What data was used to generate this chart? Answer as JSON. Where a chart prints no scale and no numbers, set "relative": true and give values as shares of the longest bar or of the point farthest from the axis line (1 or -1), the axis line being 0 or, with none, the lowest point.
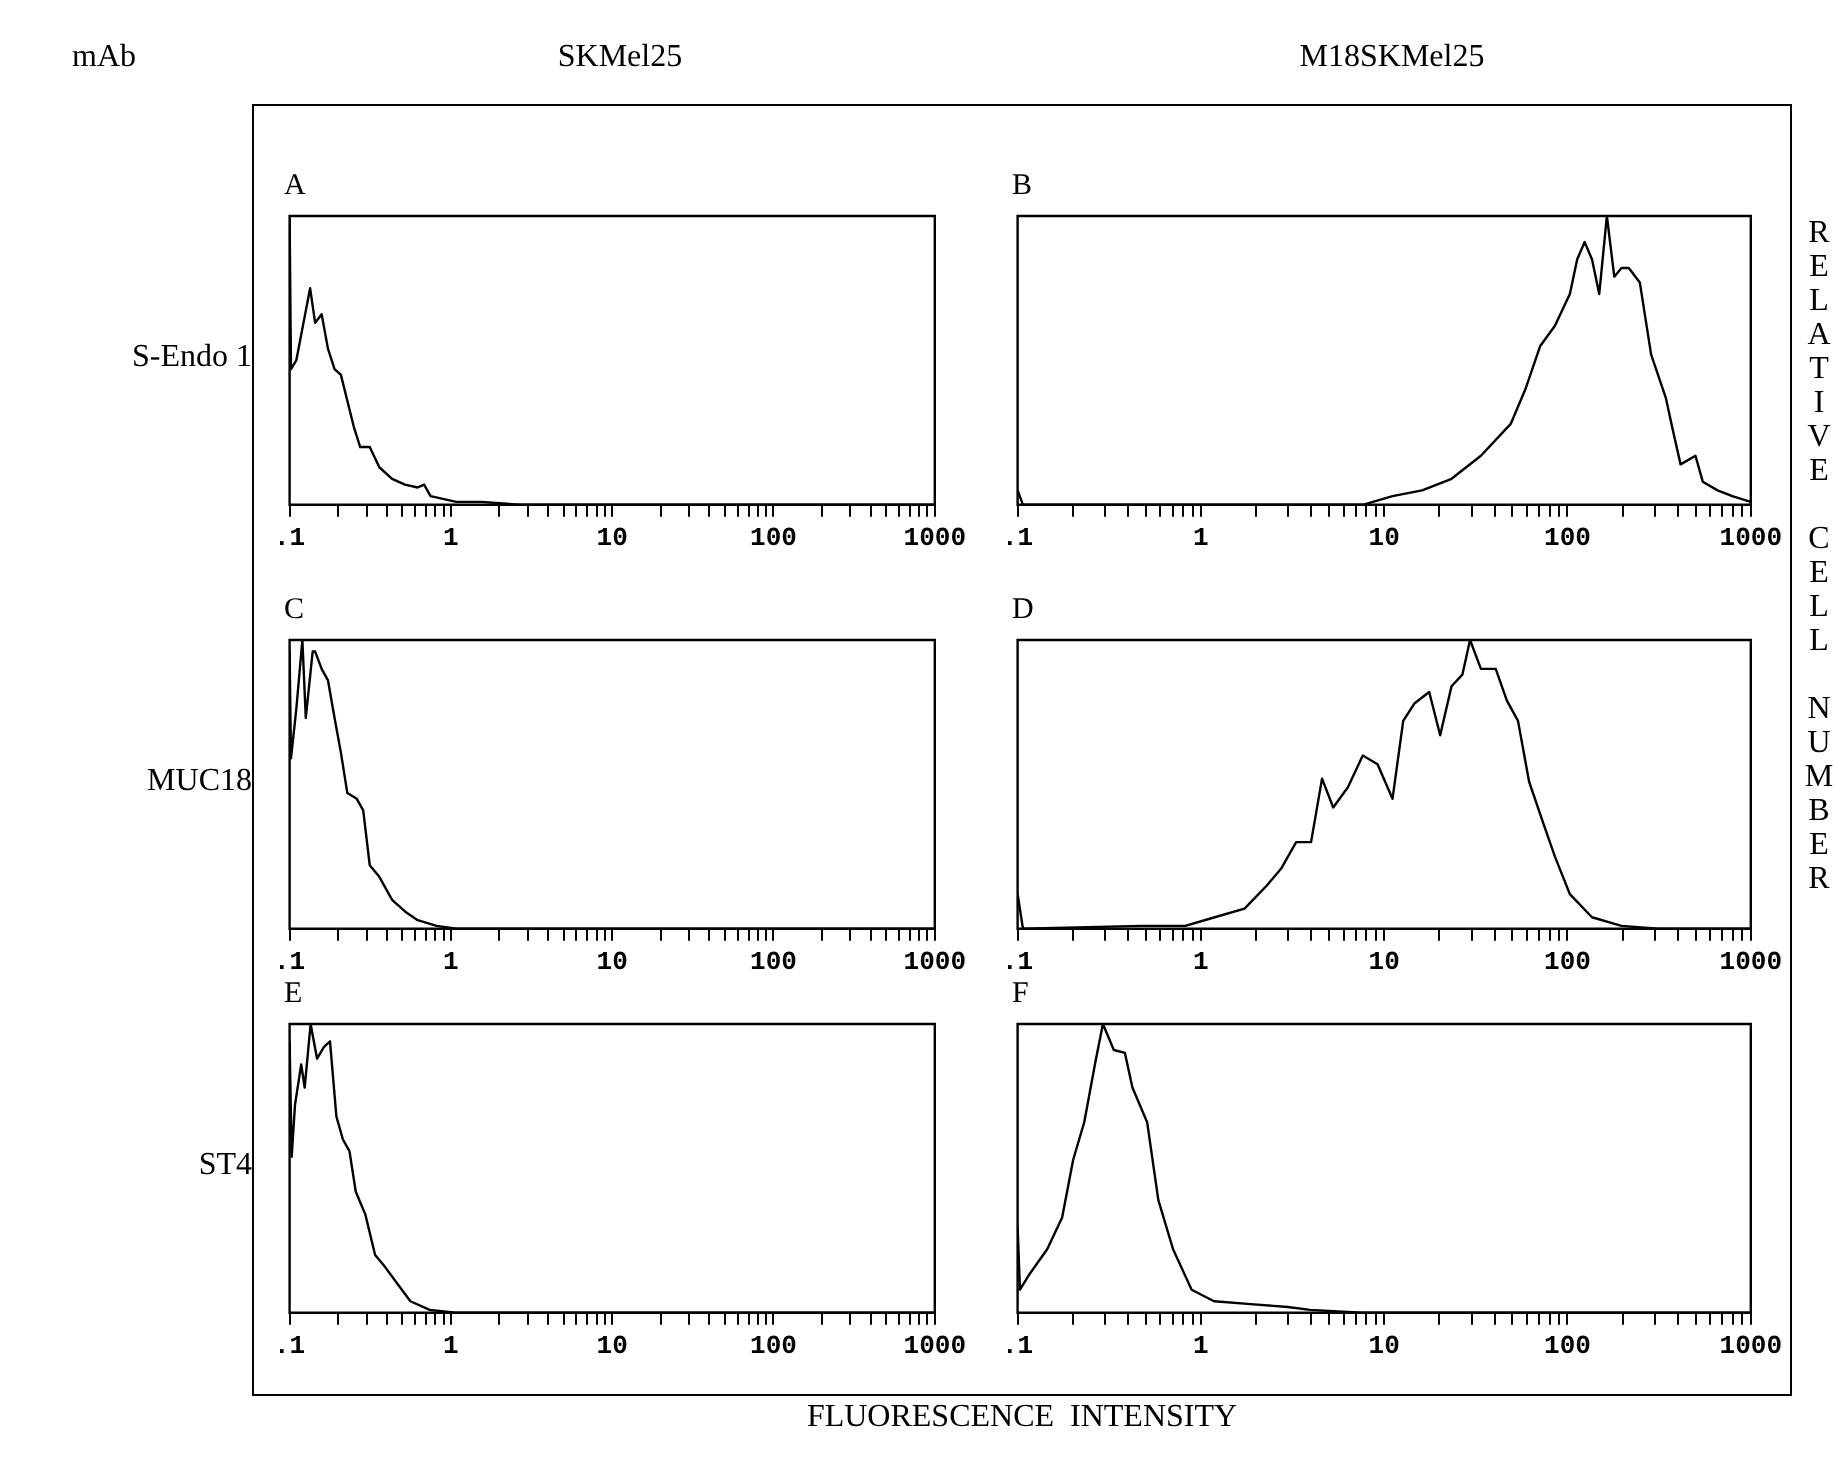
{
  "chart_data": [
    {
      "type": "line",
      "title": "A",
      "subtitle": "SKMel25",
      "ylabel": "S-Endo 1",
      "annotations": [
        "mAb"
      ],
      "relative": true,
      "log": "x",
      "tick_labels": "x",
      "xlim": [
        0.1,
        1000
      ],
      "xticks": [
        {
          "value": 0.1,
          "label": ".1"
        },
        {
          "value": 0.2,
          "label": null
        },
        {
          "value": 0.3,
          "label": null
        },
        {
          "value": 0.4,
          "label": null
        },
        {
          "value": 0.5,
          "label": null
        },
        {
          "value": 0.6,
          "label": null
        },
        {
          "value": 0.7,
          "label": null
        },
        {
          "value": 0.8,
          "label": null
        },
        {
          "value": 0.9,
          "label": null
        },
        1,
        {
          "value": 2,
          "label": null
        },
        {
          "value": 3,
          "label": null
        },
        {
          "value": 4,
          "label": null
        },
        {
          "value": 5,
          "label": null
        },
        {
          "value": 6,
          "label": null
        },
        {
          "value": 7,
          "label": null
        },
        {
          "value": 8,
          "label": null
        },
        {
          "value": 9,
          "label": null
        },
        10,
        {
          "value": 20,
          "label": null
        },
        {
          "value": 30,
          "label": null
        },
        {
          "value": 40,
          "label": null
        },
        {
          "value": 50,
          "label": null
        },
        {
          "value": 60,
          "label": null
        },
        {
          "value": 70,
          "label": null
        },
        {
          "value": 80,
          "label": null
        },
        {
          "value": 90,
          "label": null
        },
        100,
        {
          "value": 200,
          "label": null
        },
        {
          "value": 300,
          "label": null
        },
        {
          "value": 400,
          "label": null
        },
        {
          "value": 500,
          "label": null
        },
        {
          "value": 600,
          "label": null
        },
        {
          "value": 700,
          "label": null
        },
        {
          "value": 800,
          "label": null
        },
        {
          "value": 900,
          "label": null
        },
        1000
      ],
      "x": [
        0.1,
        0.102,
        0.11,
        0.12,
        0.134,
        0.144,
        0.158,
        0.173,
        0.19,
        0.208,
        0.228,
        0.25,
        0.274,
        0.314,
        0.36,
        0.432,
        0.519,
        0.622,
        0.682,
        0.748,
        1.08,
        1.55,
        2.69,
        1000
      ],
      "series": [
        {
          "color": "#000000",
          "values": [
            1,
            0.47,
            0.5,
            0.61,
            0.75,
            0.63,
            0.66,
            0.54,
            0.47,
            0.45,
            0.36,
            0.27,
            0.2,
            0.2,
            0.13,
            0.09,
            0.07,
            0.06,
            0.07,
            0.03,
            0.01,
            0.01,
            0,
            0
          ]
        }
      ]
    },
    {
      "type": "line",
      "title": "B",
      "subtitle": "M18SKMel25",
      "y2label": "RELATIVE CELL NUMBER",
      "relative": true,
      "log": "x",
      "tick_labels": "x",
      "xlim": [
        0.1,
        1000
      ],
      "xticks": [
        {
          "value": 0.1,
          "label": ".1"
        },
        {
          "value": 0.2,
          "label": null
        },
        {
          "value": 0.3,
          "label": null
        },
        {
          "value": 0.4,
          "label": null
        },
        {
          "value": 0.5,
          "label": null
        },
        {
          "value": 0.6,
          "label": null
        },
        {
          "value": 0.7,
          "label": null
        },
        {
          "value": 0.8,
          "label": null
        },
        {
          "value": 0.9,
          "label": null
        },
        1,
        {
          "value": 2,
          "label": null
        },
        {
          "value": 3,
          "label": null
        },
        {
          "value": 4,
          "label": null
        },
        {
          "value": 5,
          "label": null
        },
        {
          "value": 6,
          "label": null
        },
        {
          "value": 7,
          "label": null
        },
        {
          "value": 8,
          "label": null
        },
        {
          "value": 9,
          "label": null
        },
        10,
        {
          "value": 20,
          "label": null
        },
        {
          "value": 30,
          "label": null
        },
        {
          "value": 40,
          "label": null
        },
        {
          "value": 50,
          "label": null
        },
        {
          "value": 60,
          "label": null
        },
        {
          "value": 70,
          "label": null
        },
        {
          "value": 80,
          "label": null
        },
        {
          "value": 90,
          "label": null
        },
        100,
        {
          "value": 200,
          "label": null
        },
        {
          "value": 300,
          "label": null
        },
        {
          "value": 400,
          "label": null
        },
        {
          "value": 500,
          "label": null
        },
        {
          "value": 600,
          "label": null
        },
        {
          "value": 700,
          "label": null
        },
        {
          "value": 800,
          "label": null
        },
        {
          "value": 900,
          "label": null
        },
        1000
      ],
      "x": [
        0.1,
        0.107,
        7.64,
        11.1,
        16.1,
        23.3,
        33.7,
        49,
        58.9,
        71,
        85.4,
        103,
        113,
        124,
        136,
        149,
        164,
        180,
        197,
        216,
        248,
        286,
        344,
        378,
        414,
        499,
        547,
        659,
        793,
        1000
      ],
      "series": [
        {
          "color": "#000000",
          "values": [
            0.05,
            0,
            0,
            0.03,
            0.05,
            0.09,
            0.17,
            0.28,
            0.4,
            0.55,
            0.62,
            0.73,
            0.85,
            0.91,
            0.85,
            0.73,
            1,
            0.79,
            0.82,
            0.82,
            0.77,
            0.52,
            0.37,
            0.25,
            0.14,
            0.17,
            0.08,
            0.05,
            0.03,
            0.01
          ]
        }
      ]
    },
    {
      "type": "line",
      "title": "C",
      "ylabel": "MUC18",
      "relative": true,
      "log": "x",
      "tick_labels": "x",
      "xlim": [
        0.1,
        1000
      ],
      "xticks": [
        {
          "value": 0.1,
          "label": ".1"
        },
        {
          "value": 0.2,
          "label": null
        },
        {
          "value": 0.3,
          "label": null
        },
        {
          "value": 0.4,
          "label": null
        },
        {
          "value": 0.5,
          "label": null
        },
        {
          "value": 0.6,
          "label": null
        },
        {
          "value": 0.7,
          "label": null
        },
        {
          "value": 0.8,
          "label": null
        },
        {
          "value": 0.9,
          "label": null
        },
        1,
        {
          "value": 2,
          "label": null
        },
        {
          "value": 3,
          "label": null
        },
        {
          "value": 4,
          "label": null
        },
        {
          "value": 5,
          "label": null
        },
        {
          "value": 6,
          "label": null
        },
        {
          "value": 7,
          "label": null
        },
        {
          "value": 8,
          "label": null
        },
        {
          "value": 9,
          "label": null
        },
        10,
        {
          "value": 20,
          "label": null
        },
        {
          "value": 30,
          "label": null
        },
        {
          "value": 40,
          "label": null
        },
        {
          "value": 50,
          "label": null
        },
        {
          "value": 60,
          "label": null
        },
        {
          "value": 70,
          "label": null
        },
        {
          "value": 80,
          "label": null
        },
        {
          "value": 90,
          "label": null
        },
        100,
        {
          "value": 200,
          "label": null
        },
        {
          "value": 300,
          "label": null
        },
        {
          "value": 400,
          "label": null
        },
        {
          "value": 500,
          "label": null
        },
        {
          "value": 600,
          "label": null
        },
        {
          "value": 700,
          "label": null
        },
        {
          "value": 800,
          "label": null
        },
        {
          "value": 900,
          "label": null
        },
        1000
      ],
      "x": [
        0.1,
        0.102,
        0.11,
        0.12,
        0.126,
        0.139,
        0.144,
        0.158,
        0.173,
        0.19,
        0.208,
        0.228,
        0.261,
        0.286,
        0.314,
        0.36,
        0.432,
        0.519,
        0.622,
        0.816,
        1.08,
        1000
      ],
      "series": [
        {
          "color": "#000000",
          "values": [
            0.96,
            0.59,
            0.76,
            1,
            0.73,
            0.96,
            0.96,
            0.9,
            0.86,
            0.73,
            0.61,
            0.47,
            0.45,
            0.41,
            0.22,
            0.18,
            0.1,
            0.06,
            0.03,
            0.01,
            0,
            0
          ]
        }
      ]
    },
    {
      "type": "line",
      "title": "D",
      "relative": true,
      "log": "x",
      "tick_labels": "x",
      "xlim": [
        0.1,
        1000
      ],
      "xticks": [
        {
          "value": 0.1,
          "label": ".1"
        },
        {
          "value": 0.2,
          "label": null
        },
        {
          "value": 0.3,
          "label": null
        },
        {
          "value": 0.4,
          "label": null
        },
        {
          "value": 0.5,
          "label": null
        },
        {
          "value": 0.6,
          "label": null
        },
        {
          "value": 0.7,
          "label": null
        },
        {
          "value": 0.8,
          "label": null
        },
        {
          "value": 0.9,
          "label": null
        },
        1,
        {
          "value": 2,
          "label": null
        },
        {
          "value": 3,
          "label": null
        },
        {
          "value": 4,
          "label": null
        },
        {
          "value": 5,
          "label": null
        },
        {
          "value": 6,
          "label": null
        },
        {
          "value": 7,
          "label": null
        },
        {
          "value": 8,
          "label": null
        },
        {
          "value": 9,
          "label": null
        },
        10,
        {
          "value": 20,
          "label": null
        },
        {
          "value": 30,
          "label": null
        },
        {
          "value": 40,
          "label": null
        },
        {
          "value": 50,
          "label": null
        },
        {
          "value": 60,
          "label": null
        },
        {
          "value": 70,
          "label": null
        },
        {
          "value": 80,
          "label": null
        },
        {
          "value": 90,
          "label": null
        },
        100,
        {
          "value": 200,
          "label": null
        },
        {
          "value": 300,
          "label": null
        },
        {
          "value": 400,
          "label": null
        },
        {
          "value": 500,
          "label": null
        },
        {
          "value": 600,
          "label": null
        },
        {
          "value": 700,
          "label": null
        },
        {
          "value": 800,
          "label": null
        },
        {
          "value": 900,
          "label": null
        },
        1000
      ],
      "x": [
        0.1,
        0.107,
        0.471,
        0.822,
        1.19,
        1.73,
        2.29,
        2.75,
        3.31,
        3.99,
        4.58,
        5.27,
        6.34,
        7.64,
        9.2,
        11.1,
        12.7,
        14.6,
        17.6,
        20.2,
        23.3,
        26.7,
        29.4,
        33.7,
        40.6,
        46.7,
        53.7,
        61.7,
        74.3,
        85.4,
        103,
        136,
        197,
        313,
        1000
      ],
      "series": [
        {
          "color": "#000000",
          "values": [
            0.12,
            0,
            0.01,
            0.01,
            0.04,
            0.07,
            0.15,
            0.21,
            0.3,
            0.3,
            0.52,
            0.42,
            0.49,
            0.6,
            0.57,
            0.45,
            0.72,
            0.78,
            0.82,
            0.67,
            0.84,
            0.88,
            1,
            0.9,
            0.9,
            0.79,
            0.72,
            0.51,
            0.36,
            0.25,
            0.12,
            0.04,
            0.01,
            0,
            0
          ]
        }
      ]
    },
    {
      "type": "line",
      "title": "E",
      "ylabel": "ST4",
      "xlabel": "FLUORESCENCE  INTENSITY",
      "relative": true,
      "log": "x",
      "tick_labels": "x",
      "xlim": [
        0.1,
        1000
      ],
      "xticks": [
        {
          "value": 0.1,
          "label": ".1"
        },
        {
          "value": 0.2,
          "label": null
        },
        {
          "value": 0.3,
          "label": null
        },
        {
          "value": 0.4,
          "label": null
        },
        {
          "value": 0.5,
          "label": null
        },
        {
          "value": 0.6,
          "label": null
        },
        {
          "value": 0.7,
          "label": null
        },
        {
          "value": 0.8,
          "label": null
        },
        {
          "value": 0.9,
          "label": null
        },
        1,
        {
          "value": 2,
          "label": null
        },
        {
          "value": 3,
          "label": null
        },
        {
          "value": 4,
          "label": null
        },
        {
          "value": 5,
          "label": null
        },
        {
          "value": 6,
          "label": null
        },
        {
          "value": 7,
          "label": null
        },
        {
          "value": 8,
          "label": null
        },
        {
          "value": 9,
          "label": null
        },
        10,
        {
          "value": 20,
          "label": null
        },
        {
          "value": 30,
          "label": null
        },
        {
          "value": 40,
          "label": null
        },
        {
          "value": 50,
          "label": null
        },
        {
          "value": 60,
          "label": null
        },
        {
          "value": 70,
          "label": null
        },
        {
          "value": 80,
          "label": null
        },
        {
          "value": 90,
          "label": null
        },
        100,
        {
          "value": 200,
          "label": null
        },
        {
          "value": 300,
          "label": null
        },
        {
          "value": 400,
          "label": null
        },
        {
          "value": 500,
          "label": null
        },
        {
          "value": 600,
          "label": null
        },
        {
          "value": 700,
          "label": null
        },
        {
          "value": 800,
          "label": null
        },
        {
          "value": 900,
          "label": null
        },
        1000
      ],
      "x": [
        0.1,
        0.103,
        0.108,
        0.118,
        0.124,
        0.135,
        0.148,
        0.163,
        0.178,
        0.195,
        0.214,
        0.235,
        0.257,
        0.295,
        0.339,
        0.389,
        0.467,
        0.561,
        0.739,
        1.07,
        1000
      ],
      "series": [
        {
          "color": "#000000",
          "values": [
            0.94,
            0.54,
            0.72,
            0.86,
            0.78,
            1,
            0.88,
            0.92,
            0.94,
            0.68,
            0.6,
            0.56,
            0.42,
            0.34,
            0.2,
            0.16,
            0.1,
            0.04,
            0.01,
            0,
            0
          ]
        }
      ]
    },
    {
      "type": "line",
      "title": "F",
      "relative": true,
      "log": "x",
      "tick_labels": "x",
      "xlim": [
        0.1,
        1000
      ],
      "xticks": [
        {
          "value": 0.1,
          "label": ".1"
        },
        {
          "value": 0.2,
          "label": null
        },
        {
          "value": 0.3,
          "label": null
        },
        {
          "value": 0.4,
          "label": null
        },
        {
          "value": 0.5,
          "label": null
        },
        {
          "value": 0.6,
          "label": null
        },
        {
          "value": 0.7,
          "label": null
        },
        {
          "value": 0.8,
          "label": null
        },
        {
          "value": 0.9,
          "label": null
        },
        1,
        {
          "value": 2,
          "label": null
        },
        {
          "value": 3,
          "label": null
        },
        {
          "value": 4,
          "label": null
        },
        {
          "value": 5,
          "label": null
        },
        {
          "value": 6,
          "label": null
        },
        {
          "value": 7,
          "label": null
        },
        {
          "value": 8,
          "label": null
        },
        {
          "value": 9,
          "label": null
        },
        10,
        {
          "value": 20,
          "label": null
        },
        {
          "value": 30,
          "label": null
        },
        {
          "value": 40,
          "label": null
        },
        {
          "value": 50,
          "label": null
        },
        {
          "value": 60,
          "label": null
        },
        {
          "value": 70,
          "label": null
        },
        {
          "value": 80,
          "label": null
        },
        {
          "value": 90,
          "label": null
        },
        100,
        {
          "value": 200,
          "label": null
        },
        {
          "value": 300,
          "label": null
        },
        {
          "value": 400,
          "label": null
        },
        {
          "value": 500,
          "label": null
        },
        {
          "value": 600,
          "label": null
        },
        {
          "value": 700,
          "label": null
        },
        {
          "value": 800,
          "label": null
        },
        {
          "value": 900,
          "label": null
        },
        1000
      ],
      "x": [
        0.1,
        0.103,
        0.115,
        0.145,
        0.175,
        0.201,
        0.231,
        0.266,
        0.292,
        0.335,
        0.385,
        0.423,
        0.509,
        0.586,
        0.705,
        0.89,
        1.18,
        1.87,
        2.98,
        3.94,
        7.57,
        1000
      ],
      "series": [
        {
          "color": "#000000",
          "values": [
            0.3,
            0.08,
            0.13,
            0.22,
            0.33,
            0.53,
            0.66,
            0.87,
            1,
            0.91,
            0.9,
            0.78,
            0.66,
            0.39,
            0.22,
            0.08,
            0.04,
            0.03,
            0.02,
            0.01,
            0,
            0
          ]
        }
      ]
    }
  ]
}
